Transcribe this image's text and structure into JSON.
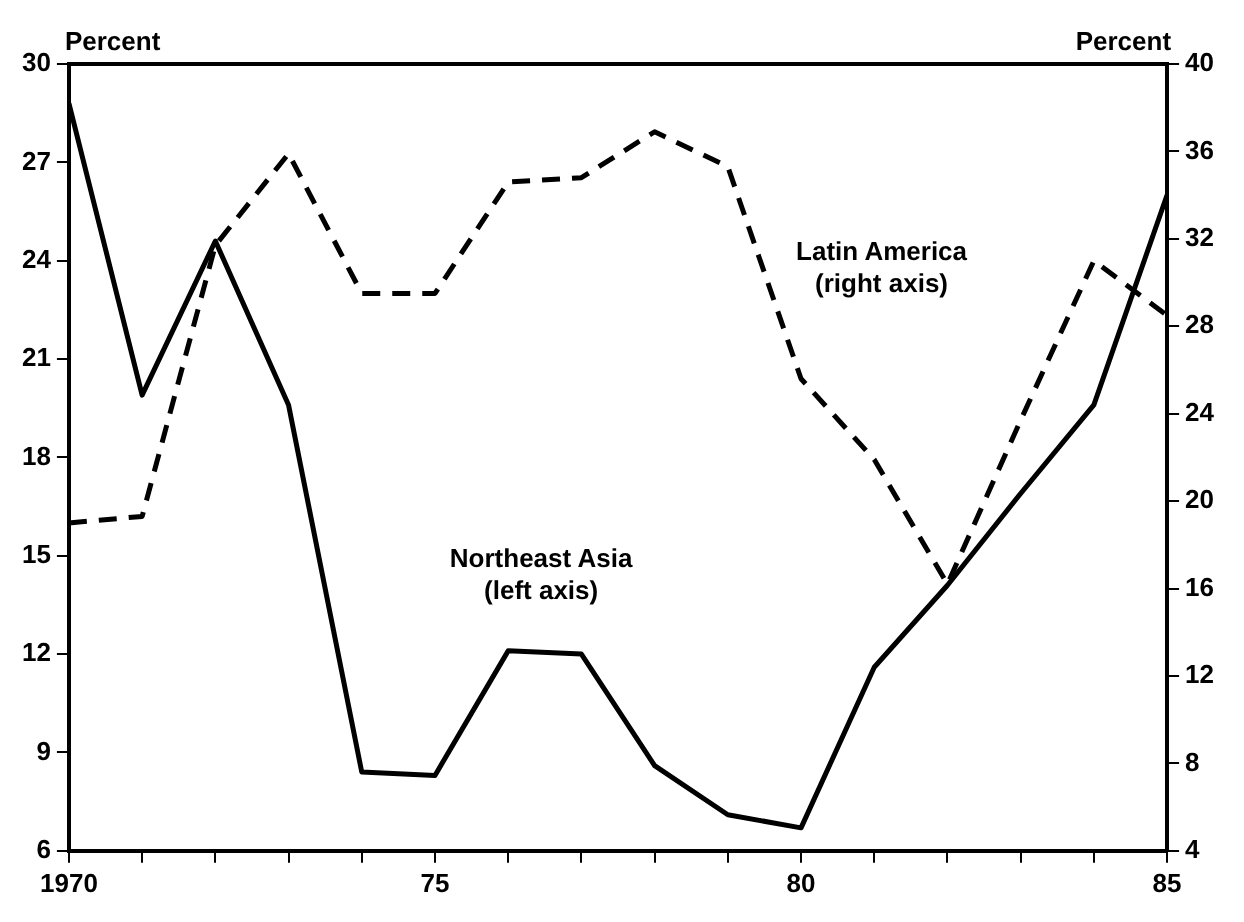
{
  "chart_data": {
    "type": "line",
    "ylabel": "Percent",
    "y2label": "Percent",
    "x": [
      1970,
      1971,
      1972,
      1973,
      1974,
      1975,
      1976,
      1977,
      1978,
      1979,
      1980,
      1981,
      1982,
      1983,
      1984,
      1985
    ],
    "xlim": [
      1970,
      1985
    ],
    "xticks": [
      {
        "value": 1970,
        "label": "1970"
      },
      {
        "value": 1971,
        "label": null
      },
      {
        "value": 1972,
        "label": null
      },
      {
        "value": 1973,
        "label": null
      },
      {
        "value": 1974,
        "label": null
      },
      {
        "value": 1975,
        "label": "75"
      },
      {
        "value": 1976,
        "label": null
      },
      {
        "value": 1977,
        "label": null
      },
      {
        "value": 1978,
        "label": null
      },
      {
        "value": 1979,
        "label": null
      },
      {
        "value": 1980,
        "label": "80"
      },
      {
        "value": 1981,
        "label": null
      },
      {
        "value": 1982,
        "label": null
      },
      {
        "value": 1983,
        "label": null
      },
      {
        "value": 1984,
        "label": null
      },
      {
        "value": 1985,
        "label": "85"
      }
    ],
    "ylim": [
      6,
      30
    ],
    "yticks": [
      6,
      9,
      12,
      15,
      18,
      21,
      24,
      27,
      30
    ],
    "y2lim": [
      4,
      40
    ],
    "y2ticks": [
      4,
      8,
      12,
      16,
      20,
      24,
      28,
      32,
      36,
      40
    ],
    "grid": false,
    "legend": false,
    "marker": "none",
    "series": [
      {
        "name": "Northeast Asia (left axis)",
        "color": "#000000",
        "line_style": "solid",
        "axis": "y",
        "values": [
          28.8,
          19.9,
          24.6,
          19.6,
          8.4,
          8.3,
          12.1,
          12.0,
          8.6,
          7.1,
          6.7,
          11.6,
          14.1,
          16.9,
          19.6,
          26.0
        ]
      },
      {
        "name": "Latin America (right axis)",
        "color": "#000000",
        "line_style": "dashed",
        "axis": "y2",
        "values": [
          19.0,
          19.3,
          31.7,
          35.9,
          29.5,
          29.5,
          34.6,
          34.8,
          36.9,
          35.3,
          25.6,
          21.9,
          16.2,
          23.7,
          31.0,
          28.5
        ]
      }
    ]
  }
}
